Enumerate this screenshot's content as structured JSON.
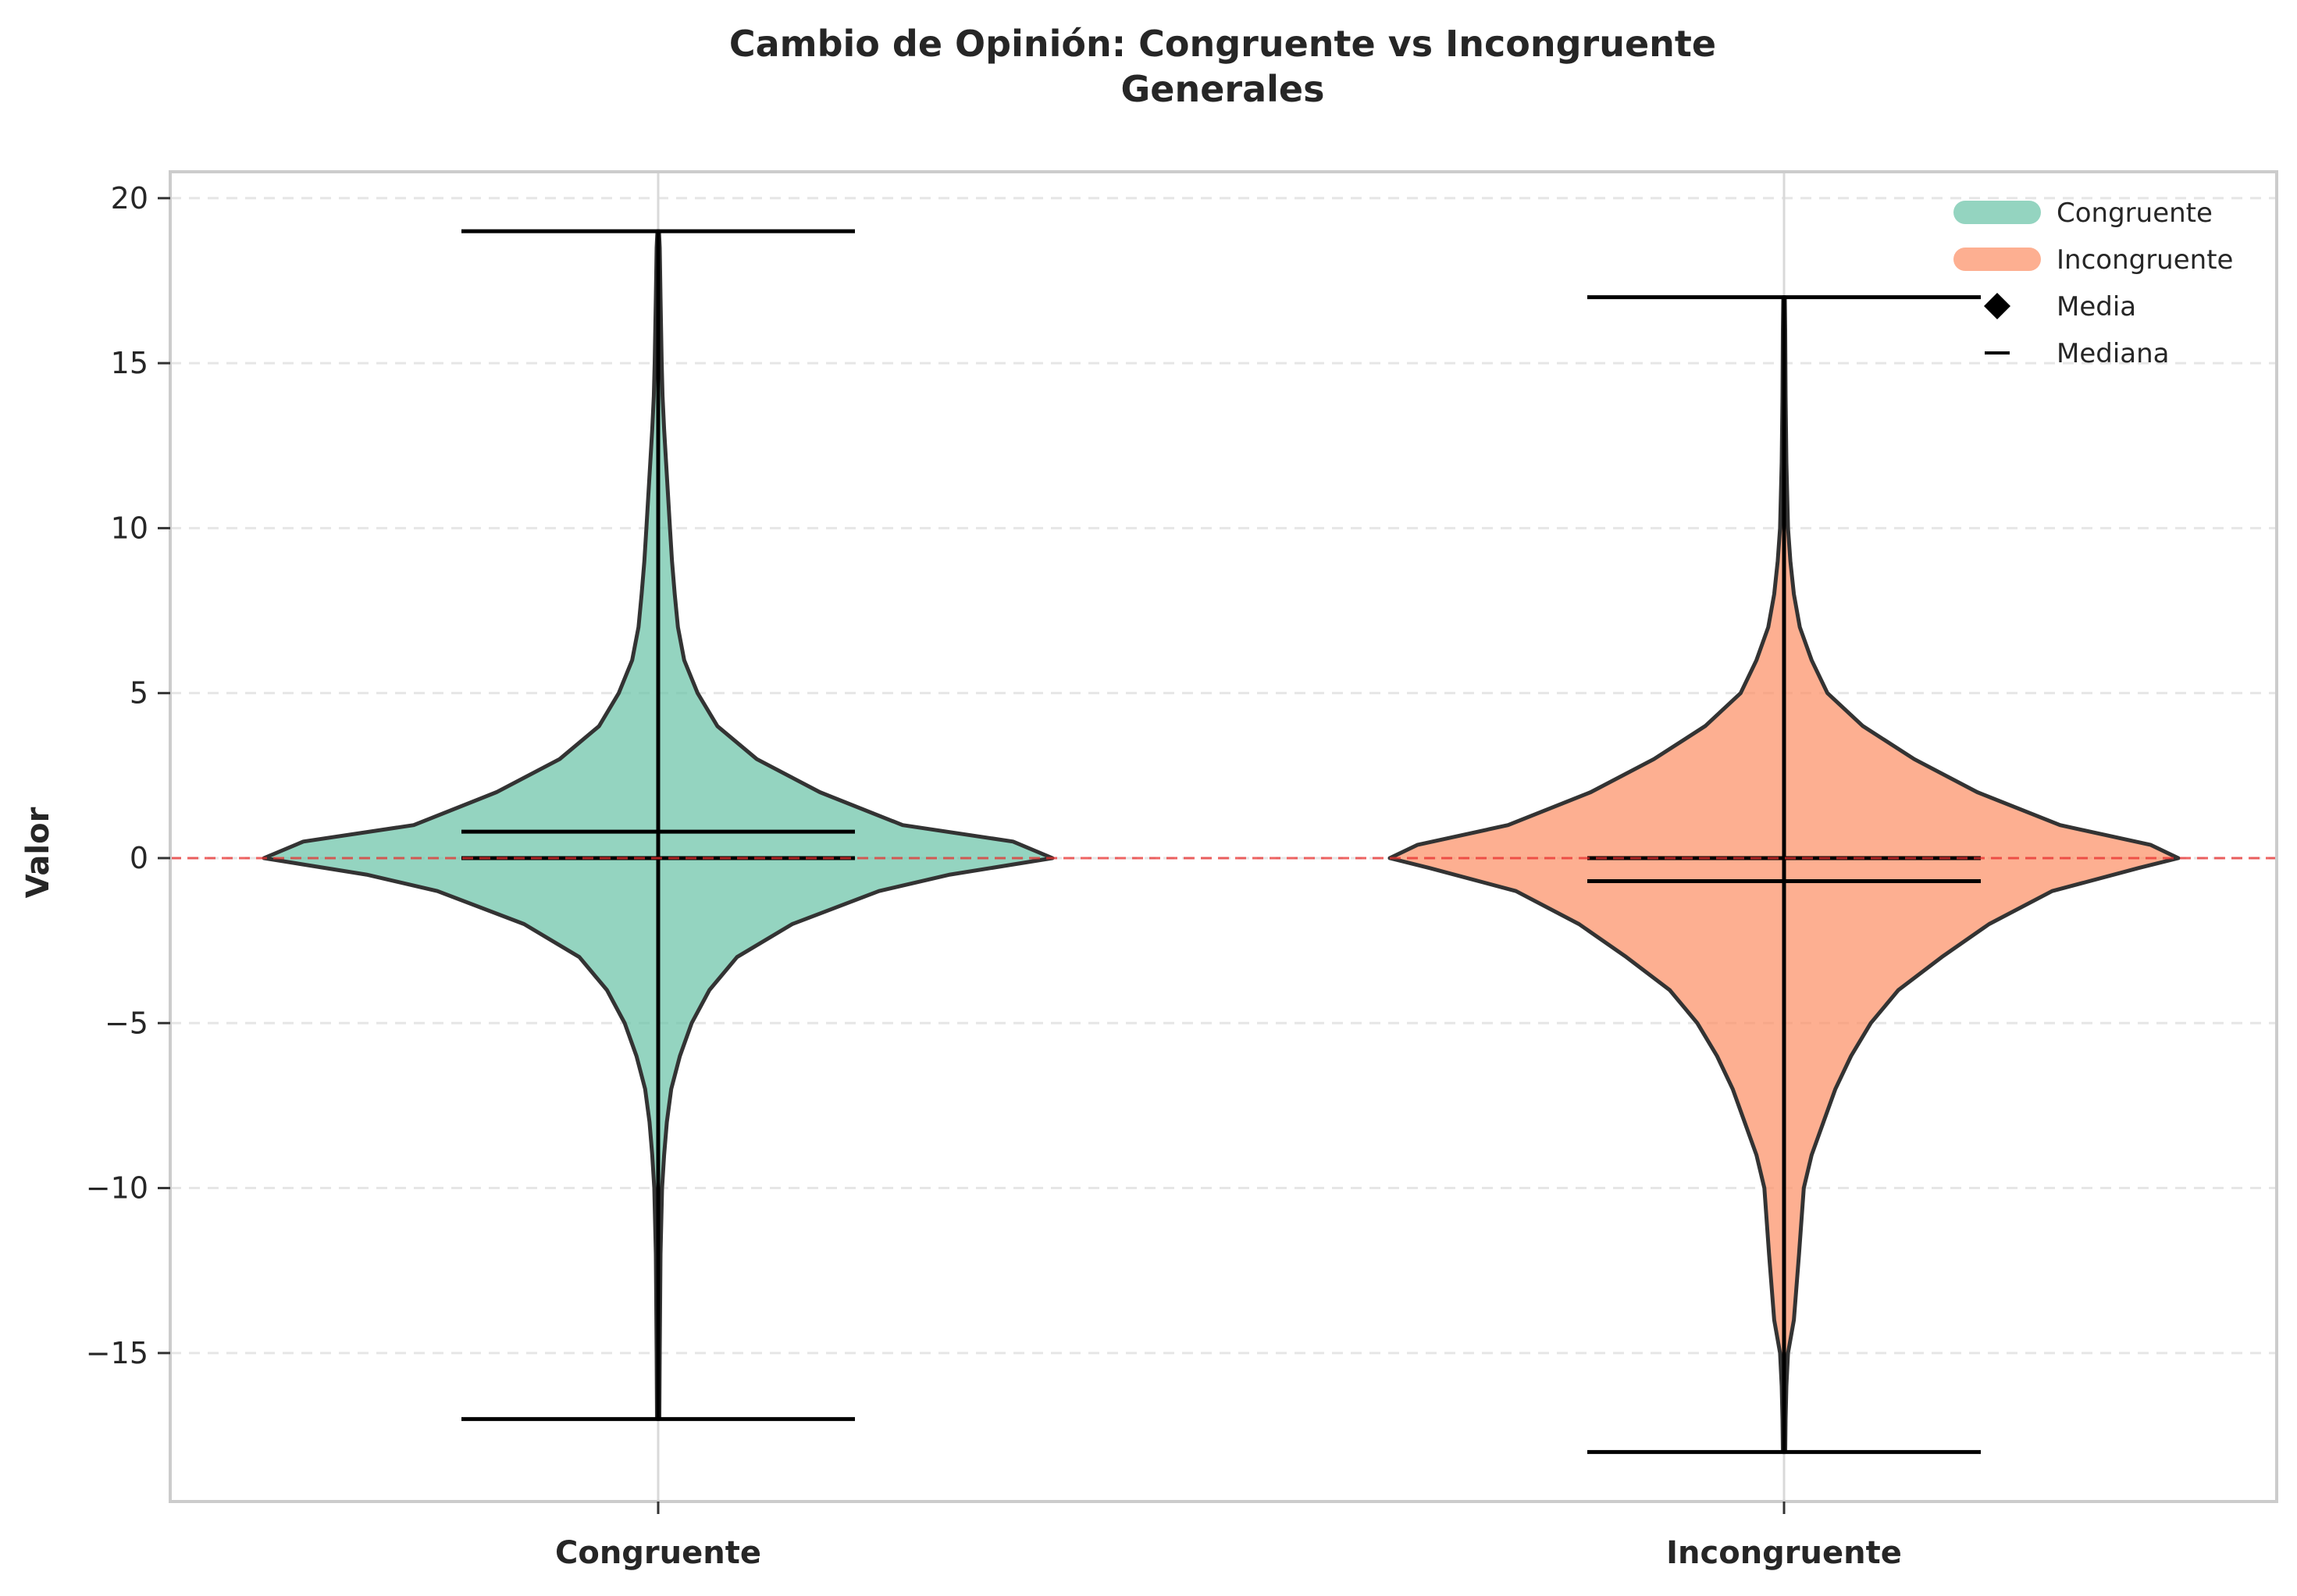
{
  "chart_data": {
    "type": "violin",
    "title": "Cambio de Opinión: Congruente vs Incongruente",
    "subtitle": "Generales",
    "xlabel": "",
    "ylabel": "Valor",
    "ylim": [
      -19.5,
      20.8
    ],
    "yticks": [
      -15,
      -10,
      -5,
      0,
      5,
      10,
      15,
      20
    ],
    "ytick_labels": [
      "−15",
      "−10",
      "−5",
      "0",
      "5",
      "10",
      "15",
      "20"
    ],
    "grid": true,
    "reference_line": {
      "y": 0,
      "color": "#e8302f",
      "style": "dashed"
    },
    "legend_position": "top-right",
    "categories": [
      "Congruente",
      "Incongruente"
    ],
    "series": [
      {
        "name": "Congruente",
        "color": "#66c2a5",
        "min": -17,
        "max": 19,
        "mean": 0.8,
        "median": 0,
        "density": [
          [
            -17,
            0.003
          ],
          [
            -15,
            0.004
          ],
          [
            -12,
            0.006
          ],
          [
            -10,
            0.01
          ],
          [
            -9,
            0.015
          ],
          [
            -8,
            0.022
          ],
          [
            -7,
            0.033
          ],
          [
            -6,
            0.055
          ],
          [
            -5,
            0.085
          ],
          [
            -4,
            0.13
          ],
          [
            -3,
            0.2
          ],
          [
            -2,
            0.34
          ],
          [
            -1,
            0.56
          ],
          [
            -0.5,
            0.74
          ],
          [
            0,
            1.0
          ],
          [
            0.5,
            0.9
          ],
          [
            1,
            0.62
          ],
          [
            2,
            0.41
          ],
          [
            3,
            0.25
          ],
          [
            4,
            0.15
          ],
          [
            5,
            0.1
          ],
          [
            6,
            0.066
          ],
          [
            7,
            0.05
          ],
          [
            8,
            0.042
          ],
          [
            9,
            0.035
          ],
          [
            10,
            0.03
          ],
          [
            11,
            0.025
          ],
          [
            12,
            0.02
          ],
          [
            13,
            0.015
          ],
          [
            14,
            0.011
          ],
          [
            15,
            0.009
          ],
          [
            17,
            0.006
          ],
          [
            18.5,
            0.004
          ],
          [
            19,
            0.002
          ]
        ]
      },
      {
        "name": "Incongruente",
        "color": "#fc8d62",
        "min": -18,
        "max": 17,
        "mean": -0.7,
        "median": 0,
        "density": [
          [
            -18,
            0.003
          ],
          [
            -17,
            0.004
          ],
          [
            -16,
            0.006
          ],
          [
            -15,
            0.01
          ],
          [
            -14,
            0.025
          ],
          [
            -12,
            0.038
          ],
          [
            -10,
            0.05
          ],
          [
            -9,
            0.07
          ],
          [
            -8,
            0.1
          ],
          [
            -7,
            0.13
          ],
          [
            -6,
            0.17
          ],
          [
            -5,
            0.22
          ],
          [
            -4,
            0.29
          ],
          [
            -3,
            0.4
          ],
          [
            -2,
            0.52
          ],
          [
            -1,
            0.68
          ],
          [
            -0.3,
            0.9
          ],
          [
            0,
            1.0
          ],
          [
            0.4,
            0.93
          ],
          [
            1,
            0.7
          ],
          [
            2,
            0.49
          ],
          [
            3,
            0.33
          ],
          [
            4,
            0.2
          ],
          [
            5,
            0.11
          ],
          [
            6,
            0.07
          ],
          [
            7,
            0.04
          ],
          [
            8,
            0.025
          ],
          [
            9,
            0.016
          ],
          [
            10,
            0.01
          ],
          [
            12,
            0.006
          ],
          [
            14,
            0.004
          ],
          [
            16,
            0.003
          ],
          [
            17,
            0.002
          ]
        ]
      }
    ],
    "legend": [
      {
        "label": "Congruente",
        "type": "patch",
        "color": "#66c2a5"
      },
      {
        "label": "Incongruente",
        "type": "patch",
        "color": "#fc8d62"
      },
      {
        "label": "Media",
        "type": "diamond",
        "color": "#000000"
      },
      {
        "label": "Mediana",
        "type": "line",
        "color": "#000000"
      }
    ]
  }
}
